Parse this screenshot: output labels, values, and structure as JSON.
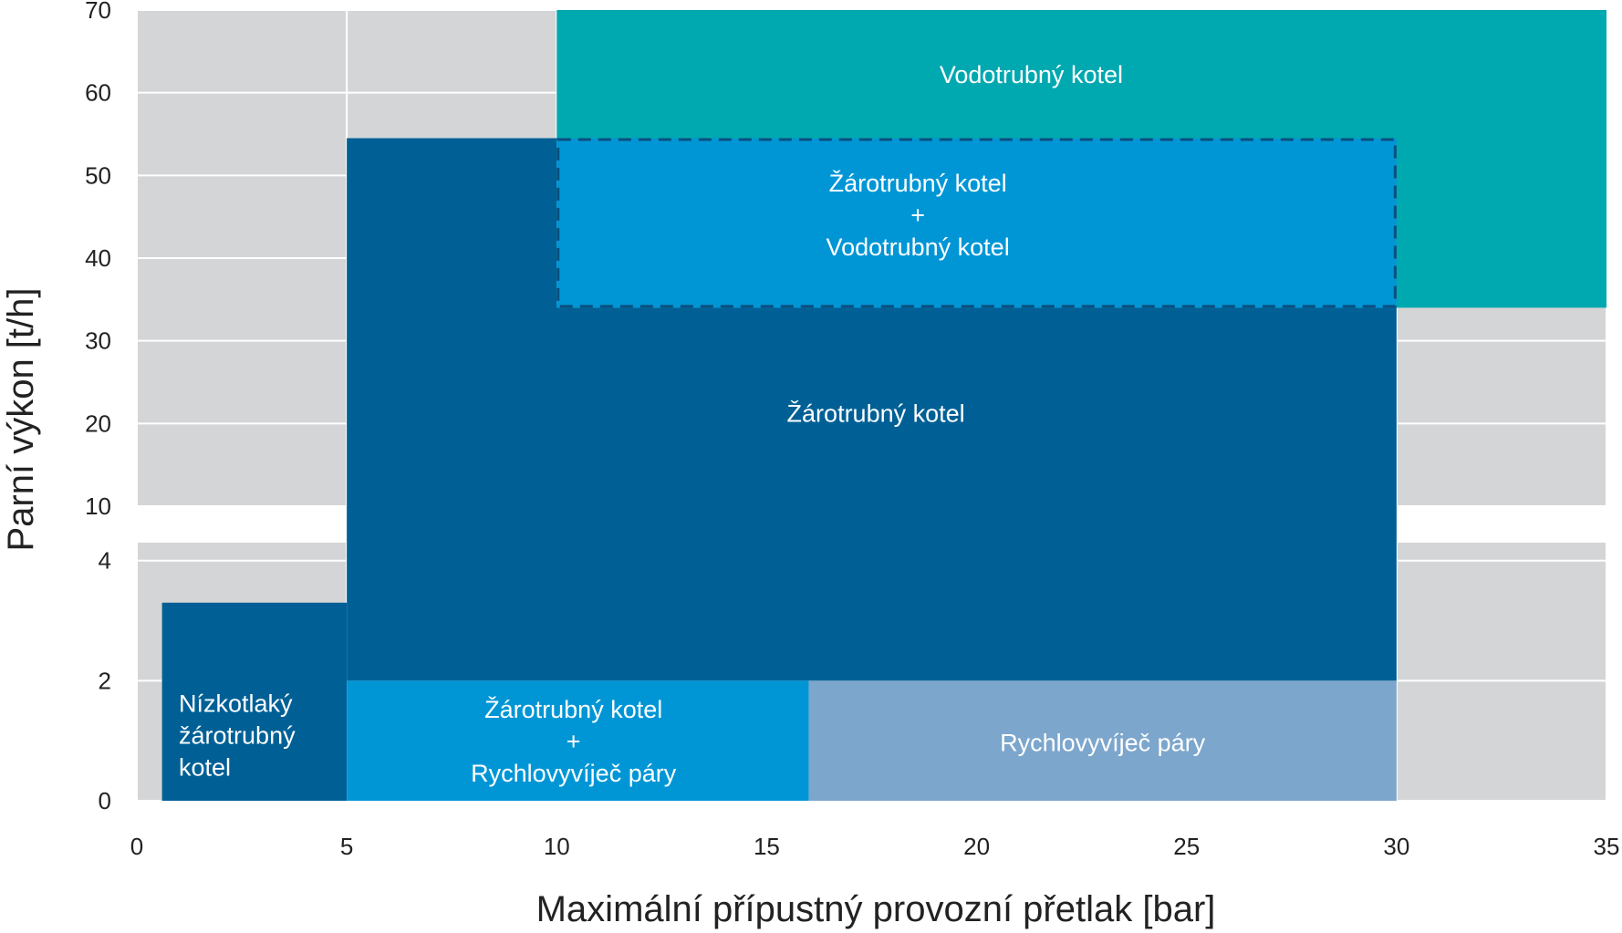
{
  "chart_data": {
    "type": "area",
    "title": "",
    "xlabel": "Maximální přípustný provozní přetlak [bar]",
    "ylabel": "Parní výkon [t/h]",
    "xlim": [
      0,
      35
    ],
    "x_ticks": [
      "0",
      "5",
      "10",
      "15",
      "20",
      "25",
      "30",
      "35"
    ],
    "y_scale": "broken axis: 0–4 t/h in lower panel, 10–70 t/h in upper panel",
    "y_ticks_lower": [
      "0",
      "2",
      "4"
    ],
    "y_ticks_upper": [
      "10",
      "20",
      "30",
      "40",
      "50",
      "60",
      "70"
    ],
    "grid": true,
    "background_color": "#d4d5d7",
    "grid_color": "#ffffff",
    "regions": [
      {
        "id": "vodotrubny",
        "label_lines": [
          "Vodotrubný kotel"
        ],
        "x_range": [
          10,
          35
        ],
        "y_range": [
          34,
          70
        ],
        "color": "#00a8b0"
      },
      {
        "id": "zarotrubny",
        "label_lines": [
          "Žárotrubný kotel"
        ],
        "polygon": [
          [
            5,
            2
          ],
          [
            5,
            54.5
          ],
          [
            10,
            54.5
          ],
          [
            10,
            34
          ],
          [
            30,
            34
          ],
          [
            30,
            2
          ]
        ],
        "color": "#006096"
      },
      {
        "id": "nizkotlaky",
        "label_lines": [
          "Nízkotlaký",
          "žárotrubný",
          "kotel"
        ],
        "x_range": [
          0.6,
          5
        ],
        "y_range": [
          0,
          3.3
        ],
        "color": "#006096"
      },
      {
        "id": "zaro-vodo",
        "label_lines": [
          "Žárotrubný kotel",
          "+",
          "Vodotrubný kotel"
        ],
        "x_range": [
          10,
          30
        ],
        "y_range": [
          34,
          54.5
        ],
        "color": "#0096d6",
        "border": "dashed",
        "border_color": "#0a4f7e"
      },
      {
        "id": "zaro-rychlo",
        "label_lines": [
          "Žárotrubný kotel",
          "+",
          "Rychlovyvíječ páry"
        ],
        "x_range": [
          5,
          16
        ],
        "y_range": [
          0,
          2
        ],
        "color": "#0096d6"
      },
      {
        "id": "rychlovyvijec",
        "label_lines": [
          "Rychlovyvíječ páry"
        ],
        "x_range": [
          16,
          30
        ],
        "y_range": [
          0,
          2
        ],
        "color": "#7ca6cc"
      }
    ]
  }
}
